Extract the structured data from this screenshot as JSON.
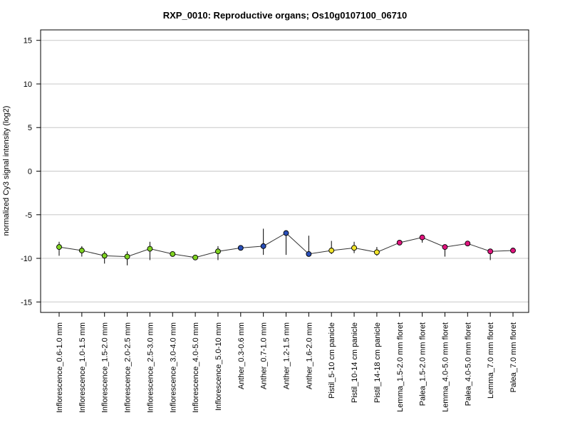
{
  "chart_data": {
    "type": "line",
    "title": "RXP_0010: Reproductive organs; Os10g0107100_06710",
    "xlabel": "",
    "ylabel": "normalized Cy3 signal intensity (log2)",
    "ylim": [
      -16.2,
      16.2
    ],
    "yticks": [
      -15,
      -10,
      -5,
      0,
      5,
      10,
      15
    ],
    "grid": true,
    "categories": [
      "Inflorescence_0.6-1.0 mm",
      "Inflorescence_1.0-1.5 mm",
      "Inflorescence_1.5-2.0 mm",
      "Inflorescence_2.0-2.5 mm",
      "Inflorescence_2.5-3.0 mm",
      "Inflorescence_3.0-4.0 mm",
      "Inflorescence_4.0-5.0 mm",
      "Inflorescence_5.0-10 mm",
      "Anther_0.3-0.6 mm",
      "Anther_0.7-1.0 mm",
      "Anther_1.2-1.5 mm",
      "Anther_1.6-2.0 mm",
      "Pistil_5-10 cm panicle",
      "Pistil_10-14 cm panicle",
      "Pistil_14-18 cm panicle",
      "Lemma_1.5-2.0 mm floret",
      "Palea_1.5-2.0 mm floret",
      "Lemma_4.0-5.0 mm floret",
      "Palea_4.0-5.0 mm floret",
      "Lemma_7.0 mm floret",
      "Palea_7.0 mm floret"
    ],
    "values": [
      -8.7,
      -9.1,
      -9.7,
      -9.8,
      -8.9,
      -9.5,
      -9.9,
      -9.2,
      -8.8,
      -8.6,
      -7.1,
      -9.5,
      -9.1,
      -8.8,
      -9.3,
      -8.2,
      -7.6,
      -8.7,
      -8.3,
      -9.2,
      -9.1
    ],
    "error_low": [
      -9.7,
      -9.8,
      -10.6,
      -10.8,
      -10.2,
      -9.7,
      -10.1,
      -10.2,
      -8.9,
      -9.6,
      -9.6,
      -9.6,
      -9.5,
      -9.4,
      -9.7,
      -8.4,
      -8.2,
      -9.8,
      -8.5,
      -10.2,
      -9.2
    ],
    "error_high": [
      -8.1,
      -8.6,
      -9.2,
      -9.2,
      -8.1,
      -9.3,
      -9.6,
      -8.6,
      -8.6,
      -6.6,
      -7.0,
      -7.4,
      -8.0,
      -8.1,
      -8.7,
      -8.0,
      -7.4,
      -8.4,
      -8.1,
      -8.9,
      -9.0
    ],
    "point_colors": [
      "#7fd321",
      "#7fd321",
      "#7fd321",
      "#7fd321",
      "#7fd321",
      "#7fd321",
      "#7fd321",
      "#7fd321",
      "#2a4fb8",
      "#2a4fb8",
      "#2a4fb8",
      "#2a4fb8",
      "#f2e42a",
      "#f2e42a",
      "#f2e42a",
      "#e0147e",
      "#e0147e",
      "#e0147e",
      "#e0147e",
      "#e0147e",
      "#e0147e"
    ],
    "line_color": "#333333",
    "grid_color": "#c8c8c8"
  }
}
